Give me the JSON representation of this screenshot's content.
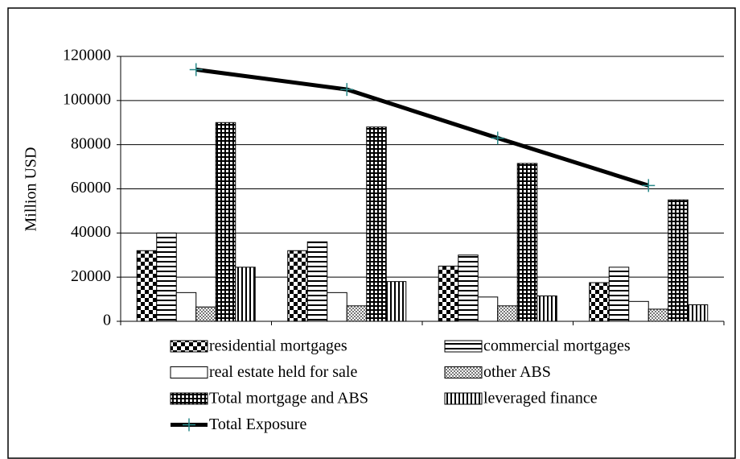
{
  "chart_data": {
    "type": "bar",
    "y_label": "Million USD",
    "ylim": [
      0,
      120000
    ],
    "yticks": [
      0,
      20000,
      40000,
      60000,
      80000,
      100000,
      120000
    ],
    "grid": true,
    "series": [
      {
        "name": "residential mortgages",
        "color": "#000000",
        "pattern": "checker",
        "values": [
          32000,
          32000,
          25000,
          17500
        ]
      },
      {
        "name": "commercial mortgages",
        "color": "#000000",
        "pattern": "hlines",
        "values": [
          40000,
          36000,
          30000,
          24500
        ]
      },
      {
        "name": "real estate held for sale",
        "color": "#000000",
        "pattern": "none",
        "values": [
          13000,
          13000,
          11000,
          9000
        ]
      },
      {
        "name": "other ABS",
        "color": "#000000",
        "pattern": "dots",
        "values": [
          6500,
          7000,
          7000,
          5500
        ]
      },
      {
        "name": "Total mortgage and ABS",
        "color": "#000000",
        "pattern": "grid",
        "values": [
          90000,
          88000,
          71500,
          55000
        ]
      },
      {
        "name": "leveraged finance",
        "color": "#000000",
        "pattern": "vlines",
        "values": [
          24500,
          18000,
          11500,
          7500
        ]
      },
      {
        "name": "Total Exposure",
        "type": "line",
        "color": "#000000",
        "marker_color": "#2a8a8a",
        "values": [
          114000,
          105000,
          83000,
          61500
        ]
      }
    ]
  }
}
